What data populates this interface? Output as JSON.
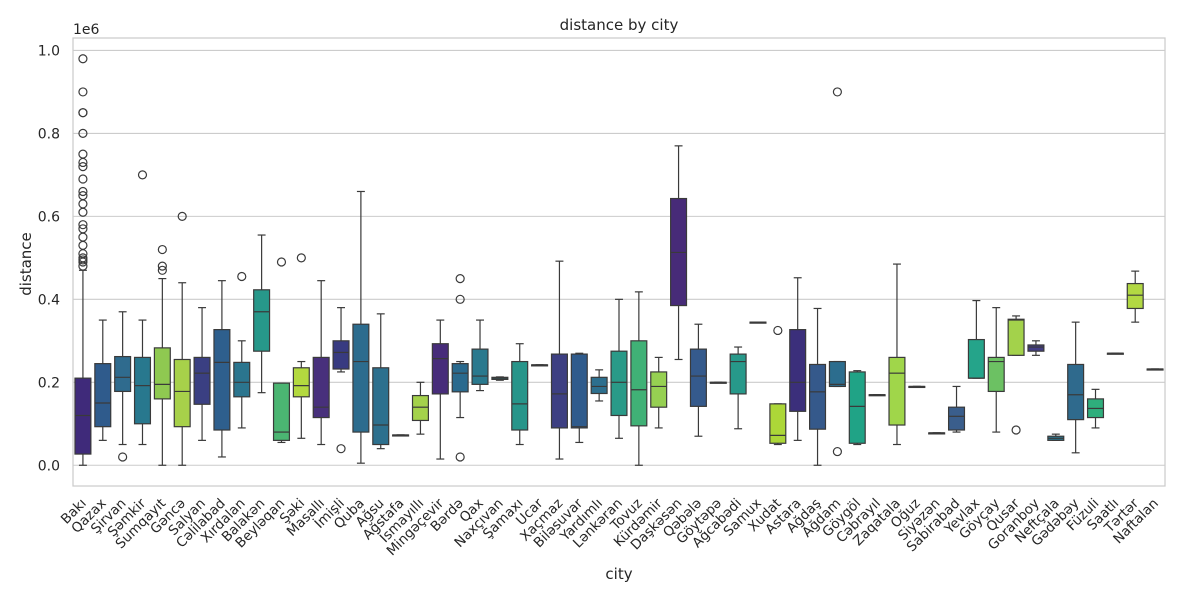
{
  "chart_data": {
    "type": "box",
    "title": "distance by city",
    "xlabel": "city",
    "ylabel": "distance",
    "y_scale_label": "1e6",
    "ylim": [
      -0.05,
      1.03
    ],
    "yticks": [
      "0.0",
      "0.2",
      "0.4",
      "0.6",
      "0.8",
      "1.0"
    ],
    "grid": true,
    "palette": "viridis",
    "categories": [
      "Bakı",
      "Qazax",
      "Şirvan",
      "Şəmkir",
      "Sumqayıt",
      "Gəncə",
      "Salyan",
      "Cəlilabad",
      "Xırdalan",
      "Balakən",
      "Beyləqan",
      "Şəki",
      "Masallı",
      "İmişli",
      "Quba",
      "Ağsu",
      "Ağstafa",
      "İsmayıllı",
      "Mingəçevir",
      "Bərdə",
      "Qax",
      "Naxçıvan",
      "Şamaxı",
      "Ucar",
      "Xaçmaz",
      "Biləsuvar",
      "Yardımlı",
      "Lənkəran",
      "Tovuz",
      "Kürdəmir",
      "Daşkəsən",
      "Qəbələ",
      "Göytəpə",
      "Ağcabədi",
      "Samux",
      "Xudat",
      "Astara",
      "Ağdaş",
      "Ağdam",
      "Göygöl",
      "Cəbrayıl",
      "Zaqatala",
      "Oğuz",
      "Siyəzən",
      "Sabirabad",
      "Yevlax",
      "Göyçay",
      "Qusar",
      "Goranboy",
      "Neftçala",
      "Gədəbəy",
      "Füzuli",
      "Saatlı",
      "Tərtər",
      "Naftalan"
    ],
    "boxes": [
      {
        "min": 0.0,
        "q1": 0.027,
        "median": 0.12,
        "q3": 0.21,
        "max": 0.47,
        "outliers": [
          0.48,
          0.49,
          0.495,
          0.5,
          0.51,
          0.53,
          0.55,
          0.57,
          0.58,
          0.61,
          0.63,
          0.65,
          0.66,
          0.69,
          0.72,
          0.73,
          0.75,
          0.8,
          0.85,
          0.85,
          0.9,
          0.98
        ]
      },
      {
        "min": 0.06,
        "q1": 0.093,
        "median": 0.15,
        "q3": 0.245,
        "max": 0.35,
        "outliers": []
      },
      {
        "min": 0.05,
        "q1": 0.178,
        "median": 0.212,
        "q3": 0.262,
        "max": 0.37,
        "outliers": [
          0.02
        ]
      },
      {
        "min": 0.05,
        "q1": 0.1,
        "median": 0.192,
        "q3": 0.26,
        "max": 0.35,
        "outliers": [
          0.7
        ]
      },
      {
        "min": 0.0,
        "q1": 0.16,
        "median": 0.195,
        "q3": 0.283,
        "max": 0.45,
        "outliers": [
          0.47,
          0.48,
          0.52
        ]
      },
      {
        "min": 0.0,
        "q1": 0.093,
        "median": 0.178,
        "q3": 0.255,
        "max": 0.44,
        "outliers": [
          0.6
        ]
      },
      {
        "min": 0.06,
        "q1": 0.147,
        "median": 0.222,
        "q3": 0.26,
        "max": 0.38,
        "outliers": []
      },
      {
        "min": 0.02,
        "q1": 0.085,
        "median": 0.248,
        "q3": 0.327,
        "max": 0.445,
        "outliers": []
      },
      {
        "min": 0.09,
        "q1": 0.165,
        "median": 0.2,
        "q3": 0.248,
        "max": 0.3,
        "outliers": [
          0.455
        ]
      },
      {
        "min": 0.175,
        "q1": 0.275,
        "median": 0.37,
        "q3": 0.423,
        "max": 0.555,
        "outliers": []
      },
      {
        "min": 0.055,
        "q1": 0.06,
        "median": 0.08,
        "q3": 0.198,
        "max": 0.198,
        "outliers": [
          0.49
        ]
      },
      {
        "min": 0.065,
        "q1": 0.165,
        "median": 0.192,
        "q3": 0.235,
        "max": 0.25,
        "outliers": [
          0.5
        ]
      },
      {
        "min": 0.05,
        "q1": 0.115,
        "median": 0.14,
        "q3": 0.26,
        "max": 0.445,
        "outliers": []
      },
      {
        "min": 0.225,
        "q1": 0.232,
        "median": 0.272,
        "q3": 0.3,
        "max": 0.38,
        "outliers": [
          0.04
        ]
      },
      {
        "min": 0.005,
        "q1": 0.08,
        "median": 0.25,
        "q3": 0.34,
        "max": 0.66,
        "outliers": []
      },
      {
        "min": 0.04,
        "q1": 0.05,
        "median": 0.097,
        "q3": 0.235,
        "max": 0.365,
        "outliers": []
      },
      {
        "min": 0.073,
        "q1": 0.073,
        "median": 0.073,
        "q3": 0.073,
        "max": 0.073,
        "outliers": []
      },
      {
        "min": 0.075,
        "q1": 0.108,
        "median": 0.14,
        "q3": 0.168,
        "max": 0.2,
        "outliers": []
      },
      {
        "min": 0.015,
        "q1": 0.172,
        "median": 0.257,
        "q3": 0.293,
        "max": 0.35,
        "outliers": []
      },
      {
        "min": 0.115,
        "q1": 0.177,
        "median": 0.222,
        "q3": 0.245,
        "max": 0.25,
        "outliers": [
          0.02,
          0.4,
          0.45
        ]
      },
      {
        "min": 0.18,
        "q1": 0.195,
        "median": 0.215,
        "q3": 0.28,
        "max": 0.35,
        "outliers": []
      },
      {
        "min": 0.205,
        "q1": 0.207,
        "median": 0.21,
        "q3": 0.212,
        "max": 0.213,
        "outliers": []
      },
      {
        "min": 0.05,
        "q1": 0.085,
        "median": 0.148,
        "q3": 0.25,
        "max": 0.293,
        "outliers": []
      },
      {
        "min": 0.242,
        "q1": 0.242,
        "median": 0.242,
        "q3": 0.242,
        "max": 0.242,
        "outliers": []
      },
      {
        "min": 0.015,
        "q1": 0.09,
        "median": 0.172,
        "q3": 0.268,
        "max": 0.492,
        "outliers": []
      },
      {
        "min": 0.055,
        "q1": 0.09,
        "median": 0.093,
        "q3": 0.268,
        "max": 0.27,
        "outliers": []
      },
      {
        "min": 0.155,
        "q1": 0.173,
        "median": 0.19,
        "q3": 0.212,
        "max": 0.23,
        "outliers": []
      },
      {
        "min": 0.065,
        "q1": 0.12,
        "median": 0.2,
        "q3": 0.275,
        "max": 0.4,
        "outliers": []
      },
      {
        "min": 0.0,
        "q1": 0.095,
        "median": 0.182,
        "q3": 0.3,
        "max": 0.418,
        "outliers": []
      },
      {
        "min": 0.09,
        "q1": 0.14,
        "median": 0.19,
        "q3": 0.225,
        "max": 0.26,
        "outliers": []
      },
      {
        "min": 0.255,
        "q1": 0.385,
        "median": 0.513,
        "q3": 0.643,
        "max": 0.77,
        "outliers": []
      },
      {
        "min": 0.07,
        "q1": 0.142,
        "median": 0.215,
        "q3": 0.28,
        "max": 0.34,
        "outliers": []
      },
      {
        "min": 0.2,
        "q1": 0.2,
        "median": 0.2,
        "q3": 0.2,
        "max": 0.2,
        "outliers": []
      },
      {
        "min": 0.088,
        "q1": 0.172,
        "median": 0.25,
        "q3": 0.268,
        "max": 0.285,
        "outliers": []
      },
      {
        "min": 0.345,
        "q1": 0.345,
        "median": 0.345,
        "q3": 0.345,
        "max": 0.345,
        "outliers": []
      },
      {
        "min": 0.05,
        "q1": 0.053,
        "median": 0.072,
        "q3": 0.148,
        "max": 0.148,
        "outliers": [
          0.325
        ]
      },
      {
        "min": 0.06,
        "q1": 0.13,
        "median": 0.2,
        "q3": 0.327,
        "max": 0.452,
        "outliers": []
      },
      {
        "min": 0.0,
        "q1": 0.087,
        "median": 0.177,
        "q3": 0.243,
        "max": 0.378,
        "outliers": []
      },
      {
        "min": 0.19,
        "q1": 0.19,
        "median": 0.195,
        "q3": 0.25,
        "max": 0.25,
        "outliers": [
          0.033,
          0.9
        ]
      },
      {
        "min": 0.05,
        "q1": 0.053,
        "median": 0.142,
        "q3": 0.225,
        "max": 0.228,
        "outliers": []
      },
      {
        "min": 0.17,
        "q1": 0.17,
        "median": 0.17,
        "q3": 0.17,
        "max": 0.17,
        "outliers": []
      },
      {
        "min": 0.05,
        "q1": 0.097,
        "median": 0.222,
        "q3": 0.26,
        "max": 0.485,
        "outliers": []
      },
      {
        "min": 0.19,
        "q1": 0.19,
        "median": 0.19,
        "q3": 0.19,
        "max": 0.19,
        "outliers": []
      },
      {
        "min": 0.078,
        "q1": 0.078,
        "median": 0.078,
        "q3": 0.078,
        "max": 0.078,
        "outliers": []
      },
      {
        "min": 0.08,
        "q1": 0.085,
        "median": 0.118,
        "q3": 0.14,
        "max": 0.19,
        "outliers": []
      },
      {
        "min": 0.21,
        "q1": 0.21,
        "median": 0.21,
        "q3": 0.303,
        "max": 0.397,
        "outliers": []
      },
      {
        "min": 0.08,
        "q1": 0.178,
        "median": 0.25,
        "q3": 0.26,
        "max": 0.38,
        "outliers": []
      },
      {
        "min": 0.265,
        "q1": 0.265,
        "median": 0.35,
        "q3": 0.352,
        "max": 0.36,
        "outliers": [
          0.085
        ]
      },
      {
        "min": 0.265,
        "q1": 0.275,
        "median": 0.285,
        "q3": 0.29,
        "max": 0.3,
        "outliers": []
      },
      {
        "min": 0.06,
        "q1": 0.06,
        "median": 0.065,
        "q3": 0.07,
        "max": 0.075,
        "outliers": []
      },
      {
        "min": 0.03,
        "q1": 0.11,
        "median": 0.17,
        "q3": 0.243,
        "max": 0.345,
        "outliers": []
      },
      {
        "min": 0.09,
        "q1": 0.115,
        "median": 0.137,
        "q3": 0.16,
        "max": 0.183,
        "outliers": []
      },
      {
        "min": 0.27,
        "q1": 0.27,
        "median": 0.27,
        "q3": 0.27,
        "max": 0.27,
        "outliers": []
      },
      {
        "min": 0.345,
        "q1": 0.378,
        "median": 0.41,
        "q3": 0.438,
        "max": 0.468,
        "outliers": []
      },
      {
        "min": 0.232,
        "q1": 0.232,
        "median": 0.232,
        "q3": 0.232,
        "max": 0.232,
        "outliers": []
      }
    ],
    "colors": [
      "#3f2a7a",
      "#2f5b8c",
      "#2f6b8e",
      "#28788e",
      "#8fc951",
      "#a7d14a",
      "#3a3f82",
      "#2e5f8d",
      "#2b758e",
      "#27988a",
      "#4bb572",
      "#b3d93f",
      "#48307c",
      "#383b81",
      "#2c6c8e",
      "#2d708e",
      "#bddf26",
      "#a4d24b",
      "#472c7a",
      "#2a6a8e",
      "#2a798e",
      "#24878e",
      "#27958a",
      "#2c728e",
      "#3d3f82",
      "#2f5b8c",
      "#2d6f8e",
      "#2a9a88",
      "#40b176",
      "#96d052",
      "#472b78",
      "#355a8c",
      "#29868e",
      "#27998a",
      "#2b7d8e",
      "#acd738",
      "#3b2f7b",
      "#35598b",
      "#2c6d8e",
      "#20a386",
      "#1fa188",
      "#a0d64a",
      "#2a798e",
      "#26808e",
      "#3a5e8c",
      "#25a48a",
      "#6cc163",
      "#a3d24b",
      "#433d84",
      "#2b748e",
      "#2f6a8d",
      "#2fae7c",
      "#2f6a8d",
      "#b2d843",
      "#2a728e"
    ]
  }
}
